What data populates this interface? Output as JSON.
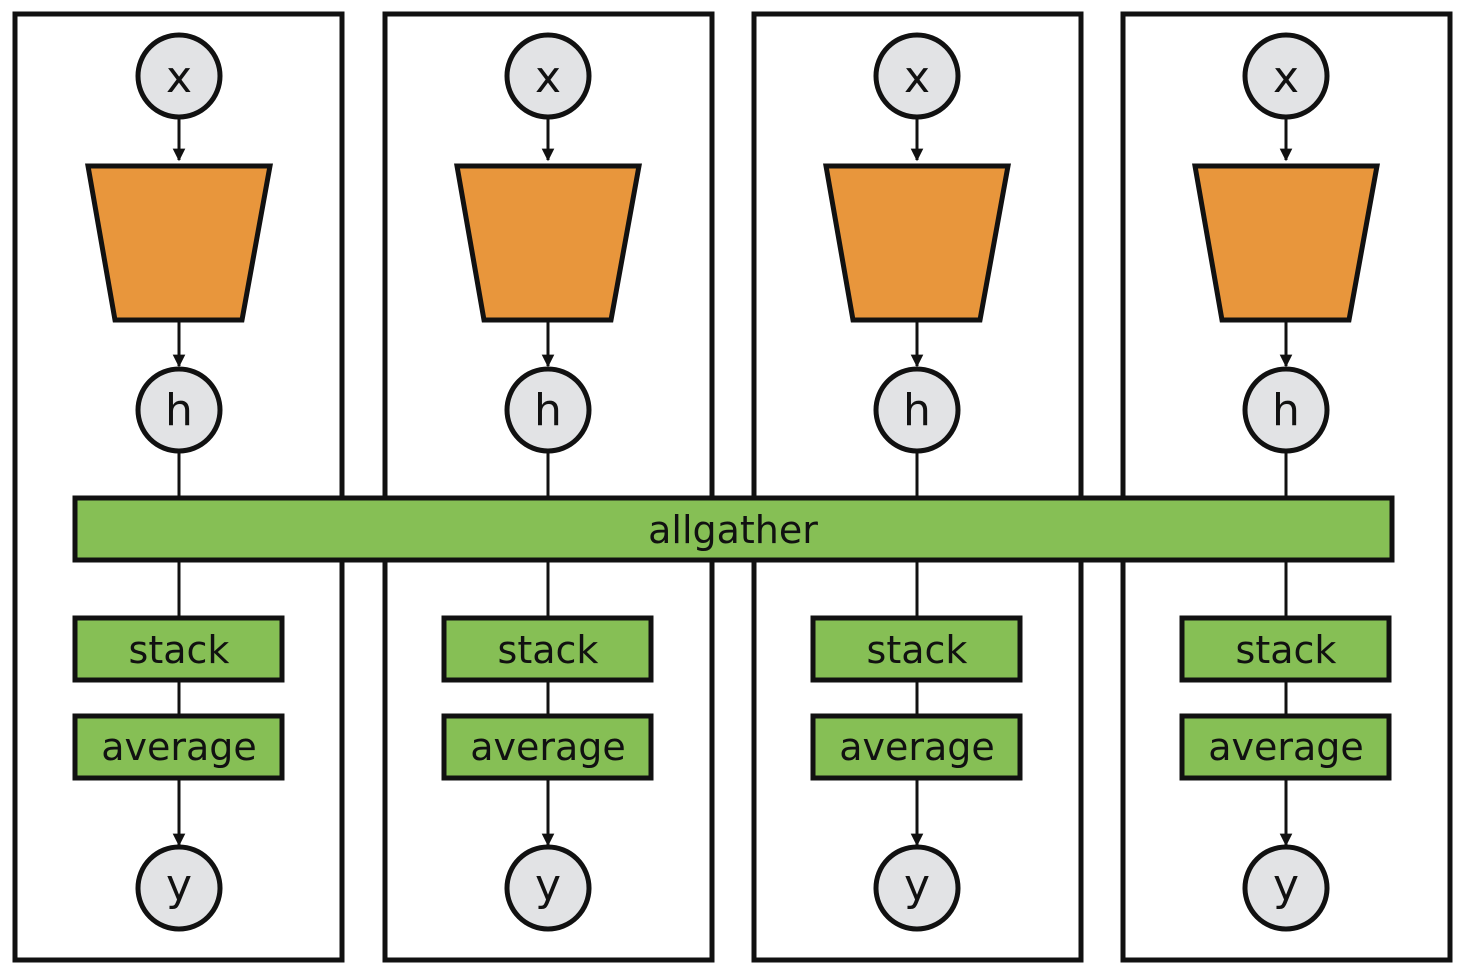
{
  "diagram": {
    "colors": {
      "encoder_fill": "#E8963C",
      "op_fill": "#86BF55",
      "node_fill": "#E2E3E5",
      "stroke": "#111111",
      "background": "#FFFFFF"
    },
    "workers": [
      {
        "input_label": "x",
        "hidden_label": "h",
        "stack_label": "stack",
        "average_label": "average",
        "output_label": "y"
      },
      {
        "input_label": "x",
        "hidden_label": "h",
        "stack_label": "stack",
        "average_label": "average",
        "output_label": "y"
      },
      {
        "input_label": "x",
        "hidden_label": "h",
        "stack_label": "stack",
        "average_label": "average",
        "output_label": "y"
      },
      {
        "input_label": "x",
        "hidden_label": "h",
        "stack_label": "stack",
        "average_label": "average",
        "output_label": "y"
      }
    ],
    "allgather_label": "allgather"
  }
}
